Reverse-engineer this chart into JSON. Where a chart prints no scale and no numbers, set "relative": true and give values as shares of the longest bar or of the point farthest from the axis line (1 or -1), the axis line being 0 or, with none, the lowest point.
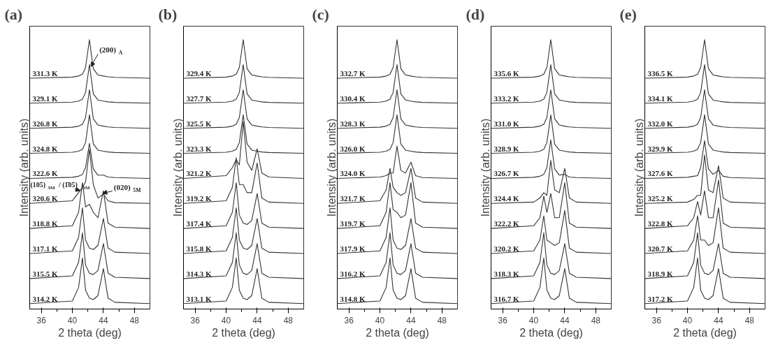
{
  "chart_data": [
    {
      "type": "line",
      "title": "(a)",
      "xlabel": "2 theta (deg)",
      "ylabel": "Intensity (arb. units)",
      "relative": true,
      "tick_labels": "x",
      "xlim": [
        34.5,
        50
      ],
      "xticks": [
        36,
        {
          "value": 38,
          "label": null
        },
        40,
        {
          "value": 42,
          "label": null
        },
        44,
        {
          "value": 46,
          "label": null
        },
        48
      ],
      "x": [
        34.5,
        40.0,
        40.8,
        41.3,
        41.7,
        42.2,
        42.7,
        43.3,
        44.0,
        44.6,
        45.5,
        50.0
      ],
      "annotations": [
        {
          "text": "(200)$_{A}$",
          "x": 42.4,
          "y": 0.9
        },
        {
          "text": "(105)$_{5M}$ / (1̄05)$_{5M}$",
          "x": 41.0,
          "y": 0.44
        },
        {
          "text": "(020)$_{5M}$",
          "x": 43.9,
          "y": 0.43
        }
      ],
      "series": [
        {
          "name": "314.2 K",
          "color": "#333333",
          "values": [
            0.02,
            0.03,
            0.08,
            0.19,
            0.07,
            0.04,
            0.035,
            0.05,
            0.15,
            0.04,
            0.025,
            0.02
          ]
        },
        {
          "name": "315.5 K",
          "color": "#333333",
          "values": [
            0.113,
            0.123,
            0.173,
            0.283,
            0.163,
            0.133,
            0.128,
            0.143,
            0.243,
            0.133,
            0.118,
            0.113
          ]
        },
        {
          "name": "317.1 K",
          "color": "#333333",
          "values": [
            0.206,
            0.216,
            0.266,
            0.376,
            0.256,
            0.226,
            0.221,
            0.236,
            0.336,
            0.226,
            0.211,
            0.206
          ]
        },
        {
          "name": "318.8 K",
          "color": "#333333",
          "values": [
            0.299,
            0.309,
            0.359,
            0.469,
            0.379,
            0.389,
            0.359,
            0.339,
            0.439,
            0.319,
            0.304,
            0.299
          ]
        },
        {
          "name": "320.6 K",
          "color": "#333333",
          "values": [
            0.392,
            0.402,
            0.432,
            0.452,
            0.472,
            0.592,
            0.462,
            0.412,
            0.427,
            0.402,
            0.395,
            0.392
          ]
        },
        {
          "name": "322.6 K",
          "color": "#333333",
          "values": [
            0.485,
            0.489,
            0.493,
            0.5,
            0.525,
            0.615,
            0.52,
            0.497,
            0.497,
            0.49,
            0.488,
            0.485
          ]
        },
        {
          "name": "324.8 K",
          "color": "#333333",
          "values": [
            0.578,
            0.582,
            0.586,
            0.593,
            0.618,
            0.721,
            0.613,
            0.59,
            0.586,
            0.583,
            0.581,
            0.578
          ]
        },
        {
          "name": "326.8 K",
          "color": "#333333",
          "values": [
            0.671,
            0.675,
            0.679,
            0.686,
            0.711,
            0.814,
            0.706,
            0.683,
            0.679,
            0.676,
            0.674,
            0.671
          ]
        },
        {
          "name": "329.1 K",
          "color": "#333333",
          "values": [
            0.764,
            0.768,
            0.772,
            0.779,
            0.804,
            0.907,
            0.799,
            0.776,
            0.772,
            0.769,
            0.767,
            0.764
          ]
        },
        {
          "name": "331.3 K",
          "color": "#333333",
          "values": [
            0.857,
            0.861,
            0.865,
            0.872,
            0.897,
            1.0,
            0.892,
            0.869,
            0.865,
            0.862,
            0.86,
            0.857
          ]
        }
      ]
    },
    {
      "type": "line",
      "title": "(b)",
      "xlabel": "2 theta (deg)",
      "ylabel": "Intensity (arb. units)",
      "relative": true,
      "tick_labels": "x",
      "xlim": [
        34.5,
        50
      ],
      "xticks": [
        36,
        {
          "value": 38,
          "label": null
        },
        40,
        {
          "value": 42,
          "label": null
        },
        44,
        {
          "value": 46,
          "label": null
        },
        48
      ],
      "x": [
        34.5,
        40.0,
        40.8,
        41.3,
        41.7,
        42.2,
        42.7,
        43.3,
        44.0,
        44.6,
        45.5,
        50.0
      ],
      "series": [
        {
          "name": "313.1 K",
          "color": "#333333",
          "values": [
            0.02,
            0.03,
            0.08,
            0.19,
            0.07,
            0.04,
            0.035,
            0.05,
            0.15,
            0.04,
            0.025,
            0.02
          ]
        },
        {
          "name": "314.3 K",
          "color": "#333333",
          "values": [
            0.113,
            0.123,
            0.173,
            0.283,
            0.163,
            0.133,
            0.128,
            0.143,
            0.243,
            0.133,
            0.118,
            0.113
          ]
        },
        {
          "name": "315.8 K",
          "color": "#333333",
          "values": [
            0.206,
            0.216,
            0.266,
            0.376,
            0.256,
            0.226,
            0.221,
            0.236,
            0.336,
            0.226,
            0.211,
            0.206
          ]
        },
        {
          "name": "317.4 K",
          "color": "#333333",
          "values": [
            0.299,
            0.309,
            0.359,
            0.469,
            0.349,
            0.319,
            0.314,
            0.329,
            0.429,
            0.319,
            0.304,
            0.299
          ]
        },
        {
          "name": "319.2 K",
          "color": "#333333",
          "values": [
            0.392,
            0.402,
            0.452,
            0.562,
            0.462,
            0.462,
            0.432,
            0.432,
            0.542,
            0.412,
            0.397,
            0.392
          ]
        },
        {
          "name": "321.2 K",
          "color": "#333333",
          "values": [
            0.485,
            0.495,
            0.525,
            0.555,
            0.535,
            0.695,
            0.545,
            0.515,
            0.595,
            0.505,
            0.49,
            0.485
          ]
        },
        {
          "name": "323.3 K",
          "color": "#333333",
          "values": [
            0.578,
            0.582,
            0.586,
            0.593,
            0.618,
            0.721,
            0.613,
            0.59,
            0.586,
            0.583,
            0.581,
            0.578
          ]
        },
        {
          "name": "325.5 K",
          "color": "#333333",
          "values": [
            0.671,
            0.675,
            0.679,
            0.686,
            0.711,
            0.814,
            0.706,
            0.683,
            0.679,
            0.676,
            0.674,
            0.671
          ]
        },
        {
          "name": "327.7 K",
          "color": "#333333",
          "values": [
            0.764,
            0.768,
            0.772,
            0.779,
            0.804,
            0.907,
            0.799,
            0.776,
            0.772,
            0.769,
            0.767,
            0.764
          ]
        },
        {
          "name": "329.4 K",
          "color": "#333333",
          "values": [
            0.857,
            0.861,
            0.865,
            0.872,
            0.897,
            1.0,
            0.892,
            0.869,
            0.865,
            0.862,
            0.86,
            0.857
          ]
        }
      ]
    },
    {
      "type": "line",
      "title": "(c)",
      "xlabel": "2 theta (deg)",
      "ylabel": "Intensity (arb. units)",
      "relative": true,
      "tick_labels": "x",
      "xlim": [
        34.5,
        50
      ],
      "xticks": [
        36,
        {
          "value": 38,
          "label": null
        },
        40,
        {
          "value": 42,
          "label": null
        },
        44,
        {
          "value": 46,
          "label": null
        },
        48
      ],
      "x": [
        34.5,
        40.0,
        40.8,
        41.3,
        41.7,
        42.2,
        42.7,
        43.3,
        44.0,
        44.6,
        45.5,
        50.0
      ],
      "series": [
        {
          "name": "314.8 K",
          "color": "#333333",
          "values": [
            0.02,
            0.03,
            0.08,
            0.19,
            0.07,
            0.04,
            0.035,
            0.05,
            0.15,
            0.04,
            0.025,
            0.02
          ]
        },
        {
          "name": "316.2 K",
          "color": "#333333",
          "values": [
            0.113,
            0.123,
            0.173,
            0.283,
            0.163,
            0.133,
            0.128,
            0.143,
            0.243,
            0.133,
            0.118,
            0.113
          ]
        },
        {
          "name": "317.9 K",
          "color": "#333333",
          "values": [
            0.206,
            0.216,
            0.266,
            0.376,
            0.256,
            0.226,
            0.221,
            0.236,
            0.336,
            0.226,
            0.211,
            0.206
          ]
        },
        {
          "name": "319.7 K",
          "color": "#333333",
          "values": [
            0.299,
            0.309,
            0.359,
            0.469,
            0.369,
            0.359,
            0.339,
            0.349,
            0.469,
            0.319,
            0.304,
            0.299
          ]
        },
        {
          "name": "321.7 K",
          "color": "#333333",
          "values": [
            0.392,
            0.402,
            0.442,
            0.522,
            0.452,
            0.432,
            0.422,
            0.432,
            0.522,
            0.412,
            0.397,
            0.392
          ]
        },
        {
          "name": "324.0 K",
          "color": "#333333",
          "values": [
            0.485,
            0.49,
            0.495,
            0.505,
            0.505,
            0.605,
            0.515,
            0.505,
            0.545,
            0.495,
            0.488,
            0.485
          ]
        },
        {
          "name": "326.0 K",
          "color": "#333333",
          "values": [
            0.578,
            0.582,
            0.586,
            0.593,
            0.618,
            0.721,
            0.613,
            0.59,
            0.586,
            0.583,
            0.581,
            0.578
          ]
        },
        {
          "name": "328.3 K",
          "color": "#333333",
          "values": [
            0.671,
            0.675,
            0.679,
            0.686,
            0.711,
            0.814,
            0.706,
            0.683,
            0.679,
            0.676,
            0.674,
            0.671
          ]
        },
        {
          "name": "330.4 K",
          "color": "#333333",
          "values": [
            0.764,
            0.768,
            0.772,
            0.779,
            0.804,
            0.907,
            0.799,
            0.776,
            0.772,
            0.769,
            0.767,
            0.764
          ]
        },
        {
          "name": "332.7 K",
          "color": "#333333",
          "values": [
            0.857,
            0.861,
            0.865,
            0.872,
            0.897,
            1.0,
            0.892,
            0.869,
            0.865,
            0.862,
            0.86,
            0.857
          ]
        }
      ]
    },
    {
      "type": "line",
      "title": "(d)",
      "xlabel": "2 theta (deg)",
      "ylabel": "Intensity (arb. units)",
      "relative": true,
      "tick_labels": "x",
      "xlim": [
        34.5,
        50
      ],
      "xticks": [
        36,
        {
          "value": 38,
          "label": null
        },
        40,
        {
          "value": 42,
          "label": null
        },
        44,
        {
          "value": 46,
          "label": null
        },
        48
      ],
      "x": [
        34.5,
        40.0,
        40.8,
        41.3,
        41.7,
        42.2,
        42.7,
        43.3,
        44.0,
        44.6,
        45.5,
        50.0
      ],
      "series": [
        {
          "name": "316.7 K",
          "color": "#333333",
          "values": [
            0.02,
            0.03,
            0.08,
            0.19,
            0.07,
            0.04,
            0.035,
            0.05,
            0.15,
            0.04,
            0.025,
            0.02
          ]
        },
        {
          "name": "318.3 K",
          "color": "#333333",
          "values": [
            0.113,
            0.123,
            0.173,
            0.283,
            0.163,
            0.133,
            0.128,
            0.143,
            0.243,
            0.133,
            0.118,
            0.113
          ]
        },
        {
          "name": "320.2 K",
          "color": "#333333",
          "values": [
            0.206,
            0.216,
            0.256,
            0.346,
            0.256,
            0.246,
            0.236,
            0.246,
            0.366,
            0.226,
            0.211,
            0.206
          ]
        },
        {
          "name": "322.2 K",
          "color": "#333333",
          "values": [
            0.299,
            0.309,
            0.339,
            0.419,
            0.359,
            0.429,
            0.339,
            0.339,
            0.469,
            0.319,
            0.304,
            0.299
          ]
        },
        {
          "name": "324.4 K",
          "color": "#333333",
          "values": [
            0.392,
            0.397,
            0.412,
            0.432,
            0.422,
            0.552,
            0.442,
            0.432,
            0.522,
            0.412,
            0.397,
            0.392
          ]
        },
        {
          "name": "326.7 K",
          "color": "#333333",
          "values": [
            0.485,
            0.489,
            0.493,
            0.5,
            0.525,
            0.628,
            0.52,
            0.497,
            0.5,
            0.49,
            0.488,
            0.485
          ]
        },
        {
          "name": "328.9 K",
          "color": "#333333",
          "values": [
            0.578,
            0.582,
            0.586,
            0.593,
            0.618,
            0.721,
            0.613,
            0.59,
            0.586,
            0.583,
            0.581,
            0.578
          ]
        },
        {
          "name": "331.0 K",
          "color": "#333333",
          "values": [
            0.671,
            0.675,
            0.679,
            0.686,
            0.711,
            0.814,
            0.706,
            0.683,
            0.679,
            0.676,
            0.674,
            0.671
          ]
        },
        {
          "name": "333.2 K",
          "color": "#333333",
          "values": [
            0.764,
            0.768,
            0.772,
            0.779,
            0.804,
            0.907,
            0.799,
            0.776,
            0.772,
            0.769,
            0.767,
            0.764
          ]
        },
        {
          "name": "335.6 K",
          "color": "#333333",
          "values": [
            0.857,
            0.861,
            0.865,
            0.872,
            0.897,
            1.0,
            0.892,
            0.869,
            0.865,
            0.862,
            0.86,
            0.857
          ]
        }
      ]
    },
    {
      "type": "line",
      "title": "(e)",
      "xlabel": "2 theta (deg)",
      "ylabel": "Intensity (arb. units)",
      "relative": true,
      "tick_labels": "x",
      "xlim": [
        34.5,
        50
      ],
      "xticks": [
        36,
        {
          "value": 38,
          "label": null
        },
        40,
        {
          "value": 42,
          "label": null
        },
        44,
        {
          "value": 46,
          "label": null
        },
        48
      ],
      "x": [
        34.5,
        40.0,
        40.8,
        41.3,
        41.7,
        42.2,
        42.7,
        43.3,
        44.0,
        44.6,
        45.5,
        50.0
      ],
      "series": [
        {
          "name": "317.2 K",
          "color": "#333333",
          "values": [
            0.02,
            0.03,
            0.08,
            0.19,
            0.07,
            0.04,
            0.035,
            0.05,
            0.15,
            0.04,
            0.025,
            0.02
          ]
        },
        {
          "name": "318.9 K",
          "color": "#333333",
          "values": [
            0.113,
            0.123,
            0.173,
            0.283,
            0.163,
            0.133,
            0.128,
            0.143,
            0.243,
            0.133,
            0.118,
            0.113
          ]
        },
        {
          "name": "320.7 K",
          "color": "#333333",
          "values": [
            0.206,
            0.216,
            0.256,
            0.346,
            0.256,
            0.256,
            0.236,
            0.246,
            0.376,
            0.226,
            0.211,
            0.206
          ]
        },
        {
          "name": "322.8 K",
          "color": "#333333",
          "values": [
            0.299,
            0.309,
            0.339,
            0.399,
            0.349,
            0.439,
            0.339,
            0.339,
            0.479,
            0.319,
            0.304,
            0.299
          ]
        },
        {
          "name": "325.2 K",
          "color": "#333333",
          "values": [
            0.392,
            0.397,
            0.407,
            0.422,
            0.422,
            0.572,
            0.442,
            0.432,
            0.532,
            0.412,
            0.397,
            0.392
          ]
        },
        {
          "name": "327.6 K",
          "color": "#333333",
          "values": [
            0.485,
            0.489,
            0.493,
            0.495,
            0.525,
            0.625,
            0.52,
            0.5,
            0.515,
            0.493,
            0.488,
            0.485
          ]
        },
        {
          "name": "329.9 K",
          "color": "#333333",
          "values": [
            0.578,
            0.582,
            0.586,
            0.593,
            0.618,
            0.721,
            0.613,
            0.59,
            0.586,
            0.583,
            0.581,
            0.578
          ]
        },
        {
          "name": "332.0 K",
          "color": "#333333",
          "values": [
            0.671,
            0.675,
            0.679,
            0.686,
            0.711,
            0.814,
            0.706,
            0.683,
            0.679,
            0.676,
            0.674,
            0.671
          ]
        },
        {
          "name": "334.1 K",
          "color": "#333333",
          "values": [
            0.764,
            0.768,
            0.772,
            0.779,
            0.804,
            0.907,
            0.799,
            0.776,
            0.772,
            0.769,
            0.767,
            0.764
          ]
        },
        {
          "name": "336.5 K",
          "color": "#333333",
          "values": [
            0.857,
            0.861,
            0.865,
            0.872,
            0.897,
            1.0,
            0.892,
            0.869,
            0.865,
            0.862,
            0.86,
            0.857
          ]
        }
      ]
    }
  ]
}
